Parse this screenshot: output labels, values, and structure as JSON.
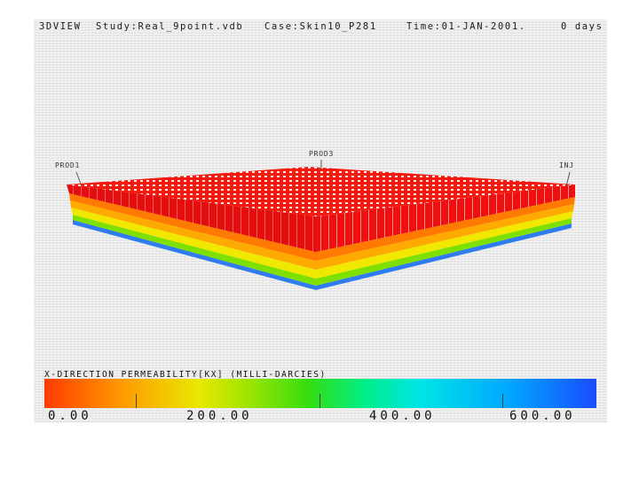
{
  "header": {
    "view": "3DVIEW",
    "study": "Study:Real_9point.vdb",
    "case": "Case:Skin10_P281",
    "time": "Time:01-JAN-2001.",
    "days": "0 days"
  },
  "wells": {
    "left": "PROD1",
    "center": "PROD3",
    "right": "INJ"
  },
  "legend": {
    "title": "X-DIRECTION PERMEABILITY[KX] (MILLI-DARCIES)",
    "ticks": [
      "0.00",
      "200.00",
      "400.00",
      "600.00"
    ]
  },
  "colors": {
    "top": "#f51a10",
    "layers": [
      "#ff7a00",
      "#ffaa00",
      "#f0e800",
      "#7ee000",
      "#2e7cf0"
    ]
  }
}
